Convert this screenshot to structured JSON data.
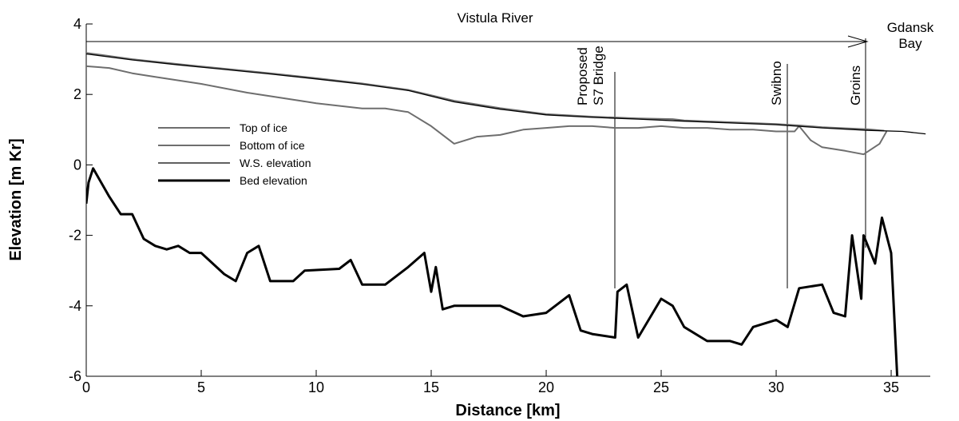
{
  "chart_data": {
    "type": "line",
    "xlabel": "Distance [km]",
    "ylabel": "Elevation [m Kr]",
    "xlim": [
      0,
      36.7
    ],
    "ylim": [
      -6,
      4
    ],
    "xticks": [
      0,
      5,
      10,
      15,
      20,
      25,
      30,
      35
    ],
    "yticks": [
      -6,
      -4,
      -2,
      0,
      2,
      4
    ],
    "grid": false,
    "legend": "left",
    "annotations": [
      "Vistula River",
      "Proposed",
      "S7 Bridge",
      "Swibno",
      "Groins",
      "Gdansk",
      "Bay"
    ],
    "series": [
      {
        "name": "Top of ice",
        "color": "#6e6e6e",
        "x": [
          0,
          2,
          4,
          6,
          8,
          10,
          12,
          14,
          16,
          18,
          20,
          22,
          24,
          25.5,
          26,
          28,
          30,
          31,
          32,
          34,
          34.7
        ],
        "values": [
          3.18,
          3.0,
          2.86,
          2.73,
          2.6,
          2.46,
          2.31,
          2.13,
          1.82,
          1.61,
          1.44,
          1.37,
          1.32,
          1.3,
          1.26,
          1.21,
          1.16,
          1.12,
          1.07,
          1.01,
          0.97
        ]
      },
      {
        "name": "Bottom of ice",
        "color": "#6e6e6e",
        "x": [
          0,
          1,
          2,
          3,
          5,
          7,
          8,
          10,
          12,
          13,
          14,
          15,
          16,
          17,
          18,
          19,
          20,
          21,
          22,
          23,
          24,
          25,
          26,
          27,
          28,
          29,
          30,
          30.8,
          31,
          31.5,
          32,
          33,
          33.8,
          34.5,
          34.8
        ],
        "values": [
          2.8,
          2.75,
          2.6,
          2.5,
          2.3,
          2.05,
          1.95,
          1.75,
          1.6,
          1.6,
          1.5,
          1.1,
          0.6,
          0.8,
          0.85,
          1.0,
          1.05,
          1.1,
          1.1,
          1.05,
          1.05,
          1.1,
          1.05,
          1.05,
          1.0,
          1.0,
          0.95,
          0.95,
          1.1,
          0.7,
          0.5,
          0.4,
          0.3,
          0.6,
          0.95
        ]
      },
      {
        "name": "W.S. elevation",
        "color": "#000000",
        "x": [
          0,
          2,
          4,
          6,
          8,
          10,
          12,
          14,
          16,
          18,
          20,
          22,
          24,
          26,
          28,
          30,
          32,
          34,
          35.5,
          36.5
        ],
        "values": [
          3.15,
          2.98,
          2.84,
          2.71,
          2.58,
          2.44,
          2.29,
          2.11,
          1.79,
          1.58,
          1.42,
          1.35,
          1.3,
          1.24,
          1.19,
          1.14,
          1.05,
          0.98,
          0.95,
          0.88
        ]
      },
      {
        "name": "Bed elevation",
        "color": "#000000",
        "x": [
          0,
          0.1,
          0.3,
          1,
          1.5,
          2,
          2.5,
          3,
          3.5,
          4,
          4.5,
          5,
          6,
          6.5,
          7,
          7.5,
          8,
          9,
          9.5,
          11,
          11.5,
          12,
          13,
          14,
          14.7,
          15,
          15.2,
          15.5,
          16,
          18,
          19,
          20,
          21,
          21.5,
          22,
          23,
          23.1,
          23.5,
          24,
          25,
          25.5,
          26,
          27,
          28,
          28.5,
          29,
          30,
          30.5,
          31,
          32,
          32.5,
          33,
          33.3,
          33.7,
          33.8,
          34.3,
          34.6,
          35,
          35.3
        ],
        "values": [
          -1.1,
          -0.5,
          -0.1,
          -0.9,
          -1.4,
          -1.4,
          -2.1,
          -2.3,
          -2.4,
          -2.3,
          -2.5,
          -2.5,
          -3.1,
          -3.3,
          -2.5,
          -2.3,
          -3.3,
          -3.3,
          -3.0,
          -2.95,
          -2.7,
          -3.4,
          -3.4,
          -2.9,
          -2.5,
          -3.6,
          -2.9,
          -4.1,
          -4.0,
          -4.0,
          -4.3,
          -4.2,
          -3.7,
          -4.7,
          -4.8,
          -4.9,
          -3.6,
          -3.4,
          -4.9,
          -3.8,
          -4.0,
          -4.6,
          -5.0,
          -5.0,
          -5.1,
          -4.6,
          -4.4,
          -4.6,
          -3.5,
          -3.4,
          -4.2,
          -4.3,
          -2.0,
          -3.8,
          -2.0,
          -2.8,
          -1.5,
          -2.5,
          -6.5
        ]
      }
    ]
  }
}
